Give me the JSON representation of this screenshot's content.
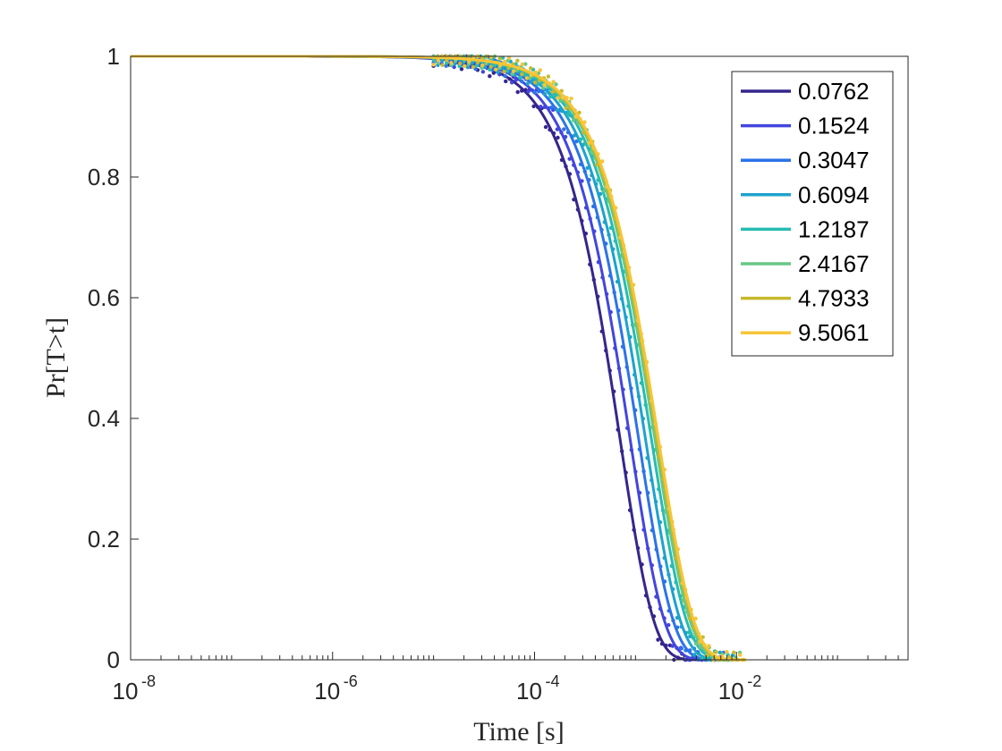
{
  "chart_data": {
    "type": "line",
    "title": "",
    "xlabel": "Time [s]",
    "ylabel": "Pr[T>t]",
    "xscale": "log",
    "xlim": [
      1e-08,
      0.5
    ],
    "ylim": [
      0,
      1
    ],
    "x_ticks": [
      {
        "base": "10",
        "exp": "-8",
        "value": 1e-08
      },
      {
        "base": "10",
        "exp": "-6",
        "value": 1e-06
      },
      {
        "base": "10",
        "exp": "-4",
        "value": 0.0001
      },
      {
        "base": "10",
        "exp": "-2",
        "value": 0.01
      }
    ],
    "y_ticks": [
      {
        "label": "0",
        "value": 0
      },
      {
        "label": "0.2",
        "value": 0.2
      },
      {
        "label": "0.4",
        "value": 0.4
      },
      {
        "label": "0.6",
        "value": 0.6
      },
      {
        "label": "0.8",
        "value": 0.8
      },
      {
        "label": "1",
        "value": 1
      }
    ],
    "grid": false,
    "legend_position": "top-right",
    "model": "Pr[T>t] = exp(-(t/tau)^beta), dotted markers are simulated samples over the same curve",
    "series": [
      {
        "name": "0.0762",
        "color": "#35268d",
        "tau": 0.0007,
        "beta": 1.3,
        "tmin": 1e-08,
        "tmax": 0.006
      },
      {
        "name": "0.1524",
        "color": "#4346dd",
        "tau": 0.00088,
        "beta": 1.28,
        "tmin": 1e-08,
        "tmax": 0.0072
      },
      {
        "name": "0.3047",
        "color": "#2c73e8",
        "tau": 0.00107,
        "beta": 1.27,
        "tmin": 1e-08,
        "tmax": 0.0082
      },
      {
        "name": "0.6094",
        "color": "#1ea2cd",
        "tau": 0.00125,
        "beta": 1.26,
        "tmin": 1e-08,
        "tmax": 0.0092
      },
      {
        "name": "1.2187",
        "color": "#27bcb2",
        "tau": 0.00143,
        "beta": 1.25,
        "tmin": 1e-08,
        "tmax": 0.01
      },
      {
        "name": "2.4167",
        "color": "#68c786",
        "tau": 0.00155,
        "beta": 1.25,
        "tmin": 1e-08,
        "tmax": 0.0108
      },
      {
        "name": "4.7933",
        "color": "#c7ba2c",
        "tau": 0.00163,
        "beta": 1.24,
        "tmin": 1e-08,
        "tmax": 0.0115
      },
      {
        "name": "9.5061",
        "color": "#f7c538",
        "tau": 0.00168,
        "beta": 1.24,
        "tmin": 1e-08,
        "tmax": 0.012
      }
    ]
  }
}
